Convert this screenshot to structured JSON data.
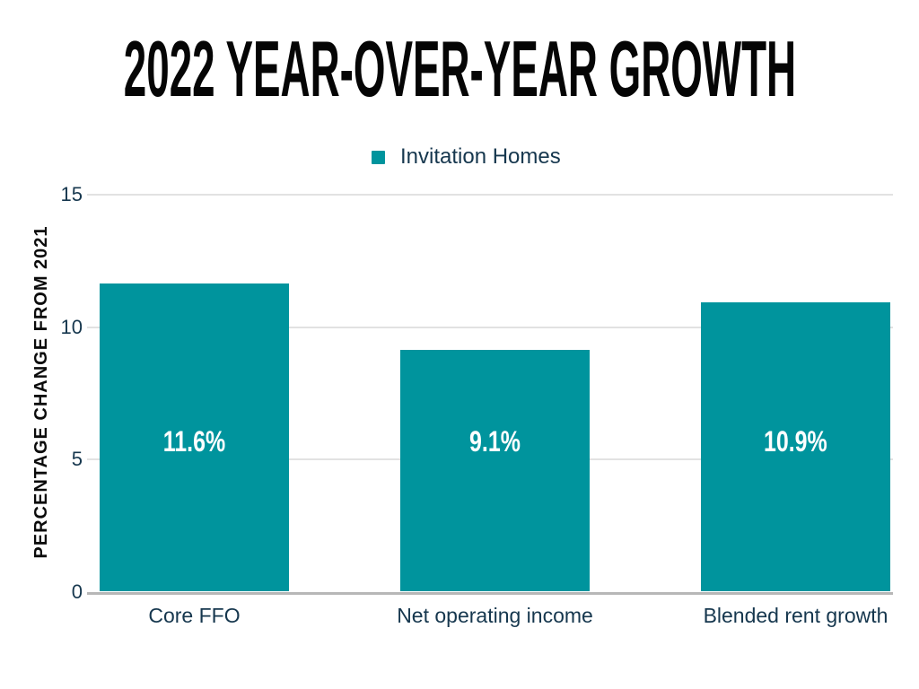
{
  "title": "2022 YEAR-OVER-YEAR GROWTH",
  "legend": {
    "label": "Invitation Homes",
    "swatch_color": "#00949D"
  },
  "y_axis": {
    "label": "PERCENTAGE CHANGE FROM 2021",
    "tick_labels": [
      "0",
      "5",
      "10",
      "15"
    ]
  },
  "colors": {
    "bar_teal": "#00949D",
    "navy_text": "#16374E",
    "title_black": "#050505",
    "gridline_gray": "#E2E2E2",
    "baseline_gray": "#B7B7B7",
    "background": "#FFFFFF",
    "value_label_white": "#FFFFFF"
  },
  "chart_data": {
    "type": "bar",
    "title": "2022 YEAR-OVER-YEAR GROWTH",
    "categories": [
      "Core FFO",
      "Net operating income",
      "Blended rent growth"
    ],
    "values": [
      11.6,
      9.1,
      10.9
    ],
    "value_labels": [
      "11.6%",
      "9.1%",
      "10.9%"
    ],
    "series": [
      {
        "name": "Invitation Homes",
        "values": [
          11.6,
          9.1,
          10.9
        ],
        "color": "#00949D"
      }
    ],
    "xlabel": "",
    "ylabel": "PERCENTAGE CHANGE FROM 2021",
    "ylim": [
      0,
      15
    ],
    "yticks": [
      0,
      5,
      10,
      15
    ],
    "grid": true,
    "legend_position": "top-center",
    "bar_label_position": "inside-center"
  }
}
